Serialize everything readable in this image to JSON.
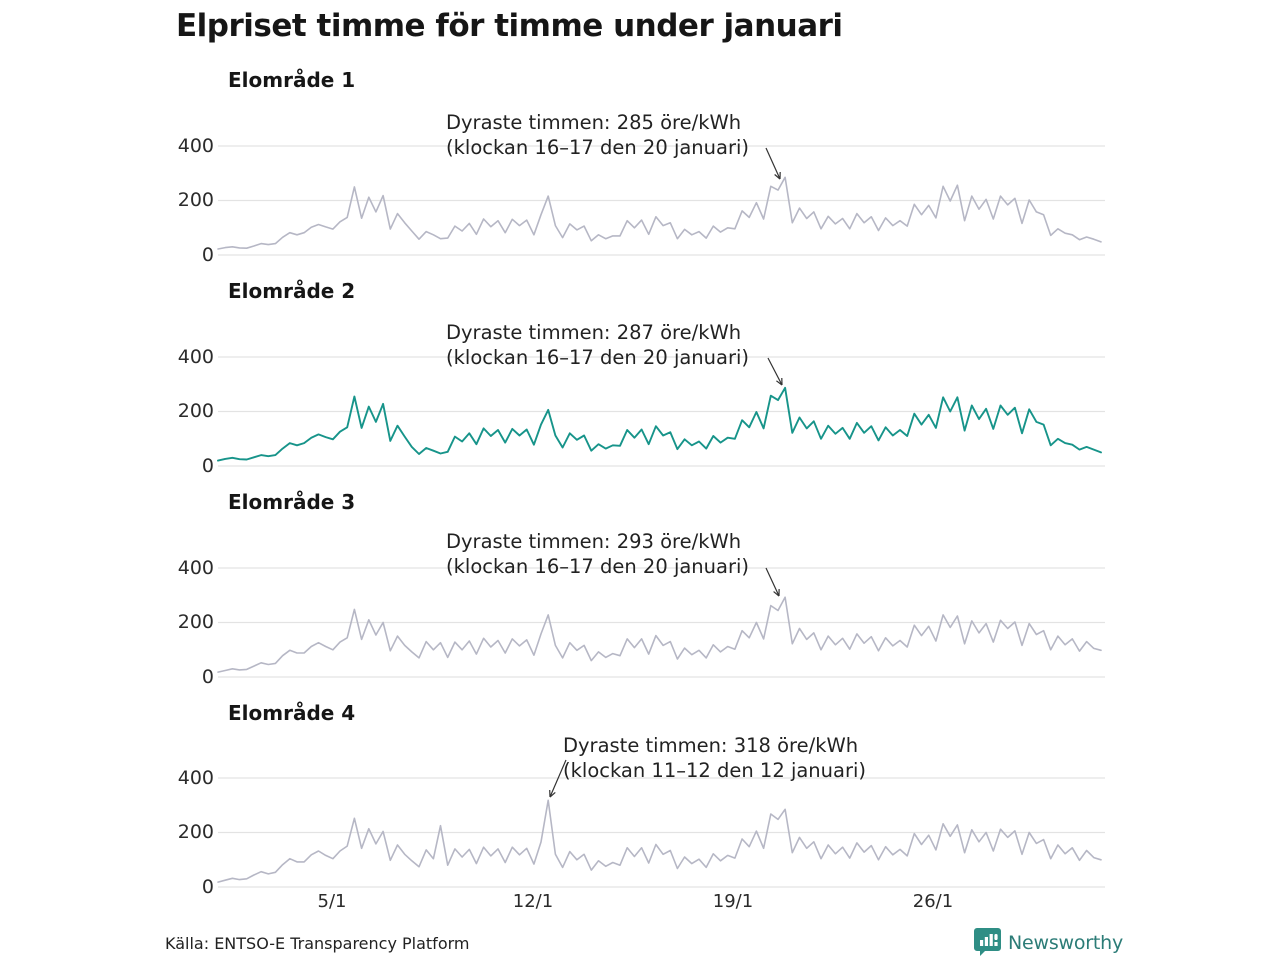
{
  "footer": {
    "source": "Källa: ENTSO-E Transparency Platform",
    "brand": "Newsworthy"
  },
  "colors": {
    "line_default": "#b6b7c5",
    "line_highlight": "#17948a",
    "grid": "#e3e3e3",
    "brand_teal": "#2f8e85",
    "annotation_arrow": "#333333"
  },
  "chart_data": {
    "type": "line",
    "title": "Elpriset timme för timme under januari",
    "unit": "öre/kWh",
    "x_tick_labels": [
      "5/1",
      "12/1",
      "19/1",
      "26/1"
    ],
    "y_tick_labels": [
      "400",
      "200",
      "0"
    ],
    "y_ticks": [
      400,
      200,
      0
    ],
    "ylim": [
      0,
      450
    ],
    "x_range_days": [
      1,
      31
    ],
    "x_resolution_hours": 6,
    "grid": true,
    "legend": false,
    "panels": [
      {
        "label": "Elområde 1",
        "color": "#b6b7c5",
        "annotation_line1": "Dyraste timmen: 285 öre/kWh",
        "annotation_line2": "(klockan 16–17 den 20 januari)",
        "max_value_ore_kwh": 285,
        "values": [
          22,
          27,
          30,
          26,
          25,
          33,
          42,
          38,
          42,
          65,
          82,
          74,
          82,
          102,
          112,
          103,
          95,
          122,
          138,
          250,
          135,
          212,
          158,
          218,
          95,
          152,
          118,
          88,
          58,
          86,
          74,
          60,
          62,
          106,
          88,
          116,
          76,
          132,
          104,
          126,
          82,
          131,
          108,
          128,
          74,
          148,
          216,
          108,
          64,
          114,
          92,
          106,
          52,
          74,
          60,
          70,
          70,
          126,
          100,
          128,
          76,
          140,
          108,
          118,
          60,
          94,
          74,
          86,
          62,
          106,
          84,
          100,
          96,
          162,
          138,
          192,
          132,
          252,
          238,
          285,
          118,
          172,
          134,
          158,
          96,
          142,
          114,
          134,
          96,
          152,
          118,
          140,
          90,
          136,
          108,
          126,
          106,
          186,
          148,
          182,
          136,
          252,
          198,
          256,
          126,
          216,
          168,
          204,
          132,
          216,
          184,
          208,
          116,
          202,
          158,
          148,
          72,
          96,
          80,
          74,
          56,
          66,
          58,
          48
        ]
      },
      {
        "label": "Elområde 2",
        "color": "#17948a",
        "annotation_line1": "Dyraste timmen: 287 öre/kWh",
        "annotation_line2": "(klockan 16–17 den 20 januari)",
        "max_value_ore_kwh": 287,
        "values": [
          20,
          26,
          30,
          25,
          24,
          32,
          40,
          36,
          40,
          64,
          84,
          76,
          84,
          104,
          116,
          106,
          98,
          126,
          142,
          255,
          140,
          218,
          162,
          228,
          92,
          148,
          108,
          70,
          44,
          66,
          56,
          46,
          52,
          108,
          90,
          120,
          80,
          138,
          110,
          132,
          86,
          136,
          112,
          134,
          78,
          152,
          206,
          112,
          68,
          120,
          96,
          112,
          56,
          80,
          64,
          76,
          74,
          132,
          104,
          134,
          80,
          146,
          112,
          124,
          62,
          98,
          76,
          90,
          64,
          110,
          86,
          104,
          100,
          168,
          142,
          198,
          138,
          258,
          242,
          287,
          122,
          178,
          138,
          164,
          100,
          148,
          118,
          140,
          100,
          158,
          122,
          146,
          94,
          142,
          112,
          132,
          110,
          192,
          152,
          188,
          140,
          252,
          200,
          252,
          130,
          222,
          172,
          210,
          136,
          222,
          188,
          214,
          120,
          208,
          162,
          152,
          76,
          100,
          84,
          78,
          60,
          70,
          60,
          50
        ]
      },
      {
        "label": "Elområde 3",
        "color": "#b6b7c5",
        "annotation_line1": "Dyraste timmen: 293 öre/kWh",
        "annotation_line2": "(klockan 16–17 den 20 januari)",
        "max_value_ore_kwh": 293,
        "values": [
          18,
          24,
          30,
          26,
          28,
          40,
          52,
          46,
          50,
          78,
          98,
          88,
          88,
          112,
          126,
          112,
          100,
          128,
          144,
          248,
          138,
          210,
          154,
          200,
          96,
          150,
          116,
          92,
          70,
          130,
          100,
          126,
          72,
          128,
          100,
          132,
          84,
          142,
          110,
          134,
          88,
          140,
          114,
          136,
          80,
          158,
          228,
          116,
          70,
          126,
          98,
          116,
          60,
          92,
          72,
          86,
          78,
          140,
          108,
          140,
          84,
          152,
          116,
          130,
          66,
          106,
          82,
          98,
          70,
          118,
          92,
          112,
          102,
          170,
          144,
          200,
          140,
          262,
          244,
          293,
          122,
          178,
          138,
          162,
          100,
          150,
          118,
          142,
          102,
          158,
          124,
          148,
          96,
          144,
          114,
          134,
          110,
          190,
          152,
          186,
          132,
          228,
          182,
          224,
          122,
          206,
          162,
          196,
          128,
          208,
          178,
          202,
          116,
          196,
          156,
          170,
          100,
          150,
          118,
          140,
          95,
          130,
          105,
          98
        ]
      },
      {
        "label": "Elområde 4",
        "color": "#b6b7c5",
        "annotation_line1": "Dyraste timmen: 318 öre/kWh",
        "annotation_line2": "(klockan 11–12 den 12 januari)",
        "max_value_ore_kwh": 318,
        "values": [
          18,
          25,
          32,
          27,
          30,
          44,
          56,
          48,
          54,
          82,
          104,
          92,
          92,
          118,
          132,
          116,
          104,
          132,
          150,
          252,
          142,
          214,
          158,
          204,
          98,
          154,
          120,
          96,
          74,
          136,
          104,
          225,
          80,
          140,
          110,
          138,
          86,
          146,
          114,
          140,
          90,
          146,
          118,
          142,
          84,
          165,
          318,
          120,
          72,
          130,
          100,
          120,
          62,
          96,
          76,
          90,
          80,
          144,
          112,
          144,
          88,
          156,
          120,
          134,
          68,
          110,
          86,
          102,
          72,
          122,
          96,
          116,
          106,
          176,
          148,
          205,
          142,
          268,
          248,
          285,
          126,
          182,
          142,
          166,
          104,
          154,
          122,
          146,
          106,
          162,
          128,
          152,
          100,
          148,
          118,
          138,
          114,
          196,
          156,
          190,
          136,
          232,
          186,
          228,
          126,
          210,
          166,
          200,
          132,
          212,
          182,
          206,
          120,
          200,
          160,
          174,
          104,
          154,
          122,
          144,
          98,
          134,
          108,
          100
        ]
      }
    ]
  }
}
